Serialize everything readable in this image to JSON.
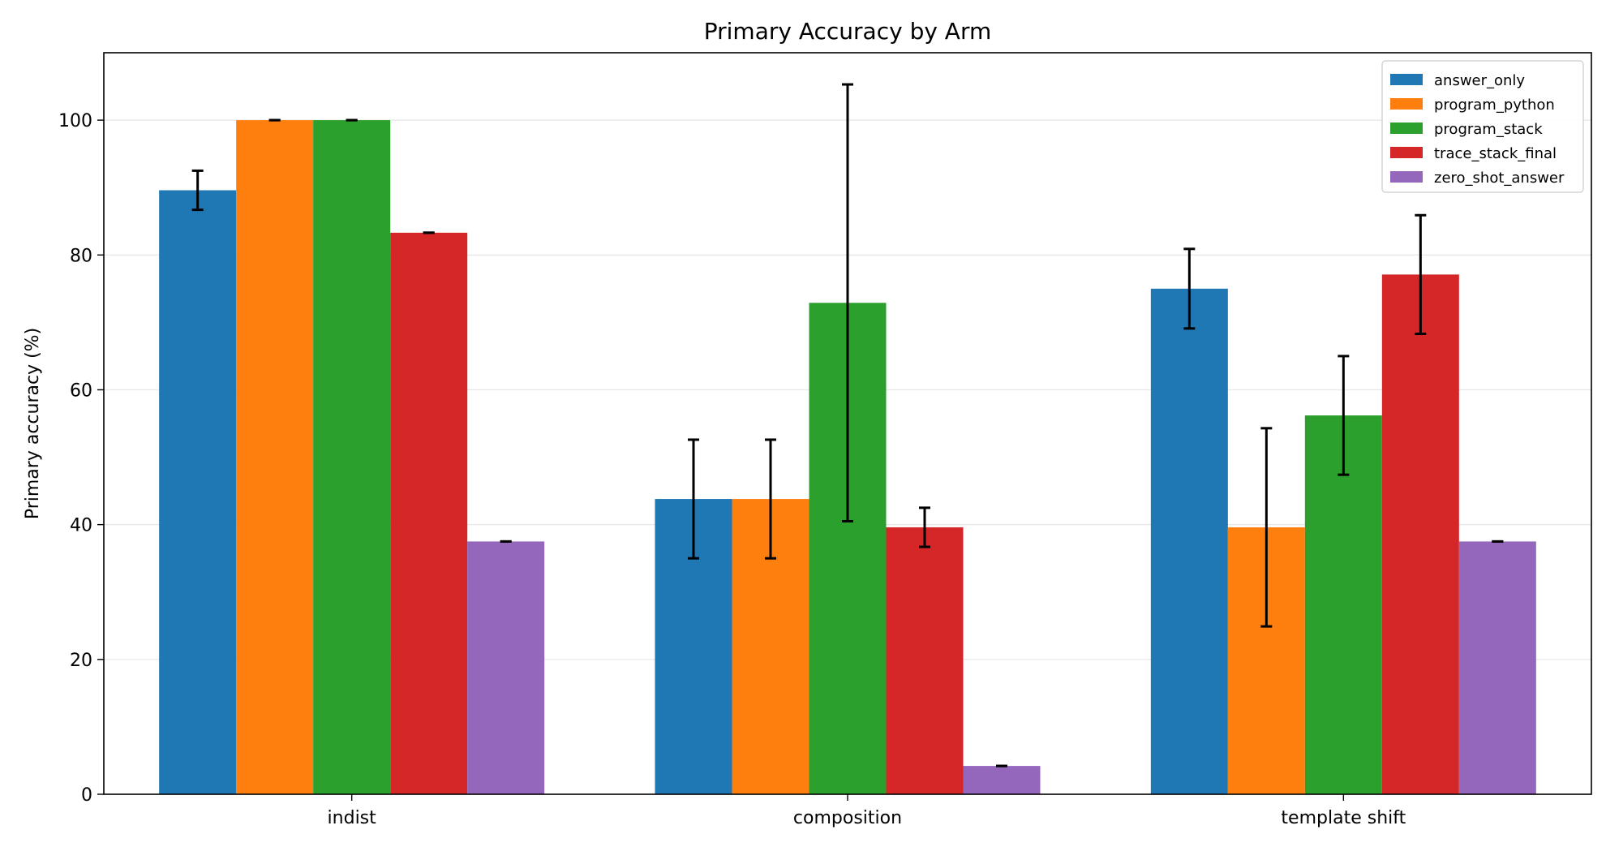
{
  "chart_data": {
    "type": "bar",
    "title": "Primary Accuracy by Arm",
    "xlabel": "",
    "ylabel": "Primary accuracy (%)",
    "ylim": [
      0,
      110
    ],
    "yticks": [
      0,
      20,
      40,
      60,
      80,
      100
    ],
    "grid": "horizontal",
    "legend_position": "top-right",
    "categories": [
      "indist",
      "composition",
      "template shift"
    ],
    "series": [
      {
        "name": "answer_only",
        "color": "#1f77b4",
        "values": [
          89.6,
          43.8,
          75.0
        ],
        "errors": [
          2.9,
          8.8,
          5.9
        ]
      },
      {
        "name": "program_python",
        "color": "#ff7f0e",
        "values": [
          100.0,
          43.8,
          39.6
        ],
        "errors": [
          0.0,
          8.8,
          14.7
        ]
      },
      {
        "name": "program_stack",
        "color": "#2ca02c",
        "values": [
          100.0,
          72.9,
          56.2
        ],
        "errors": [
          0.0,
          32.4,
          8.8
        ]
      },
      {
        "name": "trace_stack_final",
        "color": "#d62728",
        "values": [
          83.3,
          39.6,
          77.1
        ],
        "errors": [
          0.0,
          2.9,
          8.8
        ]
      },
      {
        "name": "zero_shot_answer",
        "color": "#9467bd",
        "values": [
          37.5,
          4.2,
          37.5
        ],
        "errors": [
          0.0,
          0.0,
          0.0
        ]
      }
    ]
  }
}
